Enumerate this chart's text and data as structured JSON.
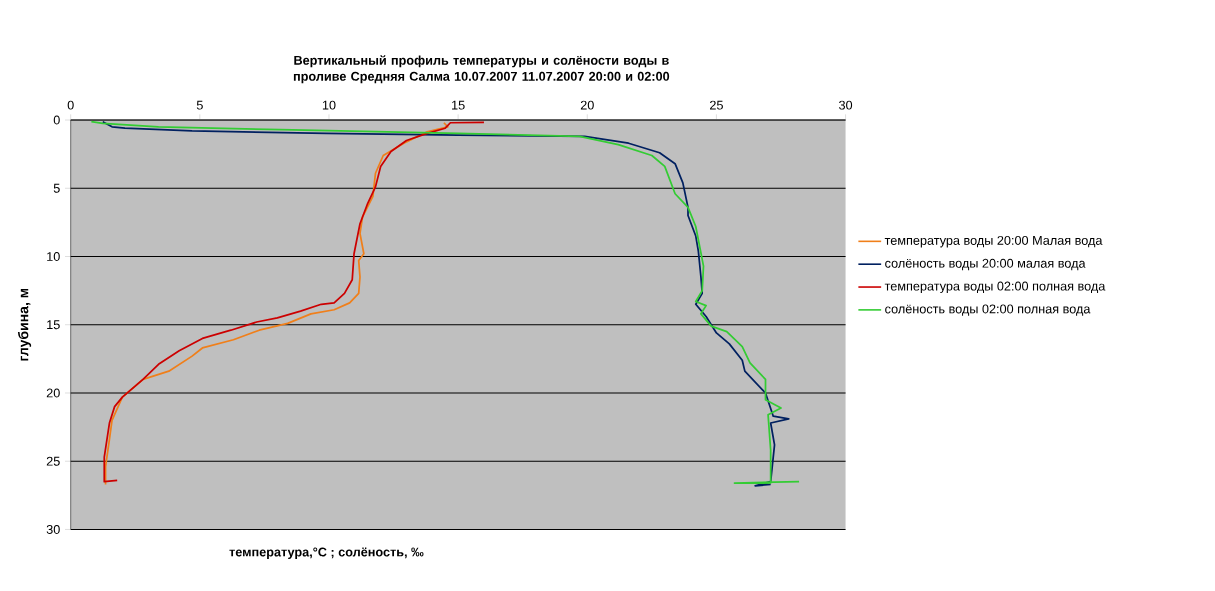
{
  "chart_data": {
    "type": "line",
    "title": "Вертикальный профиль температуры и солёности воды в проливе Средняя Салма 10.07.2007 11.07.2007 20:00 и 02:00",
    "xlabel": "температура,°C ; солёность, ‰",
    "ylabel": "глубина, м",
    "xlim": [
      0,
      30
    ],
    "xticks": [
      0,
      5,
      10,
      15,
      20,
      25,
      30
    ],
    "ylim": [
      30,
      0
    ],
    "yticks": [
      0,
      5,
      10,
      15,
      20,
      25,
      30
    ],
    "grid": "y",
    "legend": "right",
    "marker": "none",
    "line_style": "solid",
    "series": [
      {
        "name": "температура воды 20:00 Малая вода",
        "color": "#f07f1a",
        "x": [
          14.45,
          14.6,
          13.8,
          13.0,
          12.1,
          11.8,
          11.7,
          11.3,
          11.2,
          11.35,
          11.15,
          11.2,
          11.15,
          10.8,
          10.2,
          9.3,
          8.4,
          7.3,
          6.3,
          5.1,
          4.7,
          3.8,
          2.8,
          2.0,
          1.6,
          1.5,
          1.35,
          1.35
        ],
        "values": [
          0.2,
          0.5,
          0.86,
          1.6,
          2.6,
          3.9,
          5.6,
          7.1,
          8.3,
          9.8,
          10.3,
          11.5,
          12.7,
          13.4,
          13.9,
          14.2,
          14.9,
          15.4,
          16.1,
          16.7,
          17.3,
          18.4,
          19.0,
          20.3,
          22.0,
          23.4,
          25.4,
          26.7
        ]
      },
      {
        "name": "солёность воды 20:00 малая вода",
        "color": "#002060",
        "x": [
          1.24,
          1.6,
          2.1,
          4.7,
          9.9,
          15.0,
          19.9,
          21.6,
          22.8,
          23.4,
          23.7,
          23.9,
          23.9,
          24.2,
          24.3,
          24.4,
          24.45,
          24.2,
          24.6,
          25.0,
          25.5,
          26.0,
          26.1,
          26.9,
          27.2,
          27.8,
          27.1,
          27.25,
          27.1,
          26.5,
          27.1
        ],
        "values": [
          0.12,
          0.5,
          0.6,
          0.8,
          0.98,
          1.1,
          1.2,
          1.7,
          2.4,
          3.2,
          4.6,
          6.4,
          7.0,
          8.5,
          9.6,
          11.5,
          12.7,
          13.5,
          14.4,
          15.6,
          16.4,
          17.6,
          18.4,
          20.0,
          21.7,
          21.9,
          22.2,
          23.8,
          26.5,
          26.8,
          26.7
        ]
      },
      {
        "name": "температура воды 02:00 полная вода",
        "color": "#cc0000",
        "x": [
          16.0,
          14.7,
          14.5,
          13.8,
          13.0,
          12.4,
          12.0,
          11.8,
          11.5,
          11.2,
          10.97,
          10.9,
          10.6,
          10.2,
          9.7,
          8.9,
          8.0,
          7.2,
          6.2,
          5.1,
          4.2,
          3.4,
          2.8,
          2.0,
          1.7,
          1.5,
          1.3,
          1.3,
          1.8
        ],
        "values": [
          0.17,
          0.2,
          0.6,
          0.98,
          1.5,
          2.3,
          3.4,
          4.9,
          6.1,
          7.6,
          9.8,
          11.7,
          12.7,
          13.4,
          13.5,
          14.0,
          14.5,
          14.8,
          15.4,
          16.0,
          16.9,
          17.9,
          19.0,
          20.3,
          21.0,
          22.2,
          24.7,
          26.5,
          26.4
        ]
      },
      {
        "name": "солёность воды 02:00 полная вода",
        "color": "#33cc33",
        "x": [
          0.8,
          1.24,
          3.4,
          8.6,
          15.0,
          19.7,
          21.2,
          22.5,
          23.0,
          23.4,
          23.9,
          24.2,
          24.5,
          24.45,
          24.2,
          24.6,
          24.4,
          24.8,
          25.4,
          26.0,
          26.3,
          26.9,
          26.9,
          27.5,
          27.0,
          27.1,
          27.1,
          25.7,
          28.2
        ],
        "values": [
          0.12,
          0.24,
          0.5,
          0.73,
          0.98,
          1.2,
          1.8,
          2.6,
          3.4,
          5.4,
          6.4,
          7.8,
          10.7,
          12.5,
          13.3,
          13.6,
          14.2,
          15.1,
          15.5,
          16.6,
          17.8,
          19.0,
          20.5,
          21.1,
          21.6,
          24.2,
          26.6,
          26.6,
          26.5
        ]
      }
    ]
  }
}
